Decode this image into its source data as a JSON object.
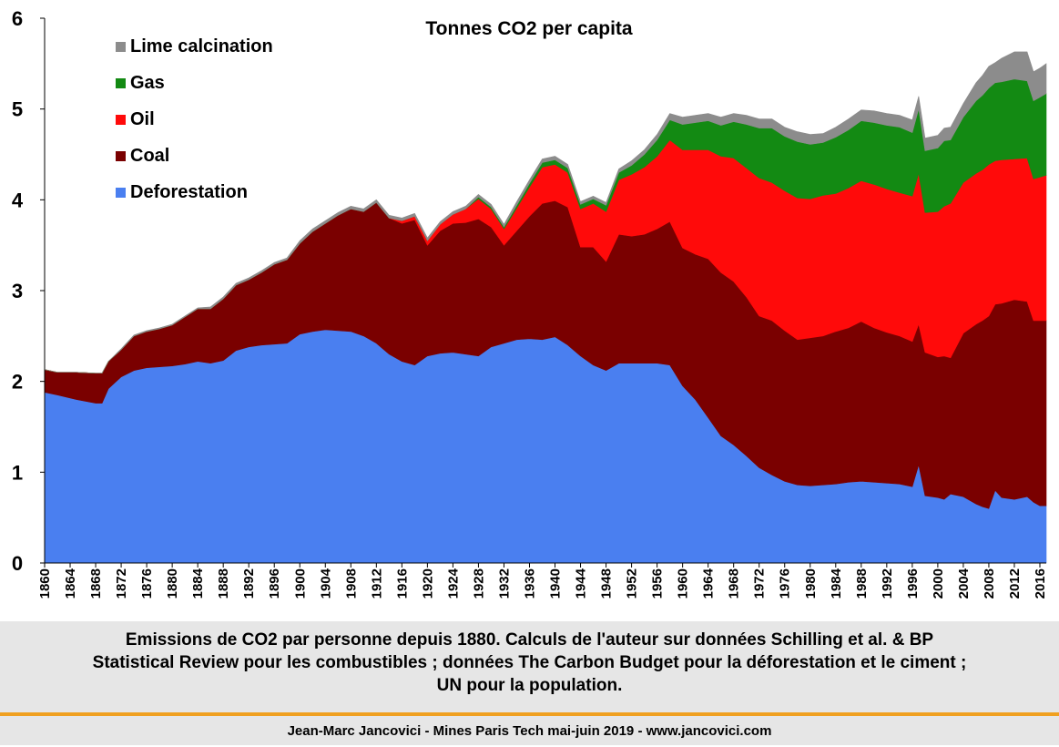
{
  "chart_data": {
    "type": "area",
    "stacked": true,
    "title": "Tonnes CO2 per capita",
    "xlabel": "",
    "ylabel": "",
    "xlim": [
      1860,
      2017
    ],
    "ylim": [
      0,
      6
    ],
    "yticks": [
      "0",
      "1",
      "2",
      "3",
      "4",
      "5",
      "6"
    ],
    "xticks": [
      "1860",
      "1864",
      "1868",
      "1872",
      "1876",
      "1880",
      "1884",
      "1888",
      "1892",
      "1896",
      "1900",
      "1904",
      "1908",
      "1912",
      "1916",
      "1920",
      "1924",
      "1928",
      "1932",
      "1936",
      "1940",
      "1944",
      "1948",
      "1952",
      "1956",
      "1960",
      "1964",
      "1968",
      "1972",
      "1976",
      "1980",
      "1984",
      "1988",
      "1992",
      "1996",
      "2000",
      "2004",
      "2008",
      "2012",
      "2016"
    ],
    "grid": false,
    "legend_position": "top-left",
    "x": [
      1860,
      1862,
      1865,
      1868,
      1869,
      1870,
      1872,
      1874,
      1876,
      1878,
      1880,
      1882,
      1884,
      1886,
      1888,
      1890,
      1892,
      1894,
      1896,
      1898,
      1900,
      1902,
      1904,
      1906,
      1908,
      1910,
      1912,
      1914,
      1916,
      1918,
      1920,
      1922,
      1924,
      1926,
      1928,
      1930,
      1932,
      1934,
      1936,
      1938,
      1940,
      1942,
      1944,
      1946,
      1948,
      1950,
      1952,
      1954,
      1956,
      1958,
      1960,
      1962,
      1964,
      1966,
      1968,
      1970,
      1972,
      1974,
      1976,
      1978,
      1980,
      1982,
      1984,
      1986,
      1988,
      1990,
      1992,
      1994,
      1996,
      1997,
      1998,
      2000,
      2001,
      2002,
      2004,
      2006,
      2007,
      2008,
      2009,
      2010,
      2012,
      2014,
      2015,
      2016,
      2017
    ],
    "series": [
      {
        "name": "Deforestation",
        "color": "#4a7ff0",
        "values": [
          1.88,
          1.85,
          1.8,
          1.76,
          1.76,
          1.92,
          2.05,
          2.12,
          2.15,
          2.16,
          2.17,
          2.19,
          2.22,
          2.2,
          2.23,
          2.34,
          2.38,
          2.4,
          2.41,
          2.42,
          2.52,
          2.55,
          2.57,
          2.56,
          2.55,
          2.5,
          2.42,
          2.3,
          2.22,
          2.18,
          2.28,
          2.31,
          2.32,
          2.3,
          2.28,
          2.38,
          2.42,
          2.46,
          2.47,
          2.46,
          2.49,
          2.4,
          2.28,
          2.18,
          2.12,
          2.2,
          2.2,
          2.2,
          2.2,
          2.18,
          1.95,
          1.8,
          1.6,
          1.4,
          1.3,
          1.18,
          1.05,
          0.97,
          0.9,
          0.86,
          0.85,
          0.86,
          0.87,
          0.89,
          0.9,
          0.89,
          0.88,
          0.87,
          0.84,
          1.08,
          0.74,
          0.72,
          0.7,
          0.76,
          0.73,
          0.65,
          0.62,
          0.6,
          0.8,
          0.72,
          0.7,
          0.73,
          0.67,
          0.63,
          0.63
        ]
      },
      {
        "name": "Coal",
        "color": "#7a0000",
        "values": [
          0.25,
          0.25,
          0.3,
          0.33,
          0.33,
          0.3,
          0.3,
          0.38,
          0.4,
          0.42,
          0.45,
          0.52,
          0.58,
          0.6,
          0.68,
          0.72,
          0.74,
          0.8,
          0.88,
          0.92,
          1.0,
          1.1,
          1.17,
          1.27,
          1.35,
          1.37,
          1.55,
          1.5,
          1.52,
          1.6,
          1.22,
          1.35,
          1.42,
          1.45,
          1.51,
          1.32,
          1.08,
          1.2,
          1.35,
          1.5,
          1.5,
          1.52,
          1.2,
          1.3,
          1.2,
          1.42,
          1.4,
          1.42,
          1.48,
          1.58,
          1.52,
          1.6,
          1.75,
          1.8,
          1.8,
          1.75,
          1.67,
          1.7,
          1.66,
          1.6,
          1.63,
          1.64,
          1.68,
          1.7,
          1.76,
          1.7,
          1.66,
          1.63,
          1.6,
          1.55,
          1.58,
          1.55,
          1.58,
          1.5,
          1.8,
          1.98,
          2.05,
          2.12,
          2.05,
          2.14,
          2.2,
          2.15,
          2.0,
          2.04,
          2.04
        ]
      },
      {
        "name": "Oil",
        "color": "#ff0a0a",
        "values": [
          0,
          0,
          0,
          0,
          0,
          0,
          0,
          0,
          0,
          0,
          0,
          0,
          0,
          0,
          0,
          0,
          0,
          0,
          0,
          0,
          0,
          0,
          0,
          0,
          0,
          0,
          0,
          0,
          0.03,
          0.04,
          0.05,
          0.07,
          0.1,
          0.15,
          0.22,
          0.2,
          0.18,
          0.25,
          0.32,
          0.4,
          0.4,
          0.38,
          0.42,
          0.48,
          0.55,
          0.6,
          0.68,
          0.74,
          0.8,
          0.9,
          1.08,
          1.15,
          1.2,
          1.28,
          1.36,
          1.42,
          1.52,
          1.52,
          1.54,
          1.56,
          1.53,
          1.55,
          1.52,
          1.54,
          1.55,
          1.58,
          1.58,
          1.58,
          1.6,
          1.66,
          1.54,
          1.6,
          1.65,
          1.7,
          1.66,
          1.66,
          1.66,
          1.67,
          1.58,
          1.58,
          1.55,
          1.58,
          1.56,
          1.58,
          1.6
        ]
      },
      {
        "name": "Gas",
        "color": "#138a13",
        "values": [
          0,
          0,
          0,
          0,
          0,
          0,
          0,
          0,
          0,
          0,
          0,
          0,
          0,
          0,
          0,
          0,
          0,
          0,
          0,
          0,
          0,
          0,
          0,
          0,
          0,
          0,
          0,
          0,
          0,
          0,
          0,
          0,
          0,
          0,
          0.02,
          0.02,
          0.02,
          0.03,
          0.04,
          0.05,
          0.05,
          0.05,
          0.05,
          0.05,
          0.07,
          0.08,
          0.1,
          0.14,
          0.18,
          0.22,
          0.28,
          0.3,
          0.32,
          0.34,
          0.4,
          0.48,
          0.55,
          0.6,
          0.6,
          0.62,
          0.6,
          0.58,
          0.62,
          0.64,
          0.66,
          0.68,
          0.7,
          0.72,
          0.7,
          0.71,
          0.68,
          0.7,
          0.72,
          0.7,
          0.72,
          0.8,
          0.82,
          0.84,
          0.86,
          0.86,
          0.88,
          0.85,
          0.86,
          0.88,
          0.9
        ]
      },
      {
        "name": "Lime calcination",
        "color": "#8c8c8c",
        "values": [
          0,
          0,
          0,
          0,
          0,
          0,
          0.01,
          0.01,
          0.01,
          0.01,
          0.01,
          0.01,
          0.01,
          0.02,
          0.02,
          0.02,
          0.02,
          0.02,
          0.02,
          0.02,
          0.03,
          0.03,
          0.03,
          0.03,
          0.03,
          0.03,
          0.03,
          0.03,
          0.03,
          0.03,
          0.03,
          0.03,
          0.03,
          0.03,
          0.03,
          0.03,
          0.03,
          0.04,
          0.04,
          0.04,
          0.04,
          0.04,
          0.03,
          0.03,
          0.03,
          0.04,
          0.05,
          0.05,
          0.06,
          0.07,
          0.08,
          0.08,
          0.08,
          0.09,
          0.09,
          0.1,
          0.1,
          0.1,
          0.1,
          0.11,
          0.11,
          0.1,
          0.11,
          0.12,
          0.12,
          0.13,
          0.13,
          0.13,
          0.14,
          0.14,
          0.14,
          0.14,
          0.14,
          0.14,
          0.15,
          0.2,
          0.22,
          0.24,
          0.22,
          0.26,
          0.3,
          0.32,
          0.32,
          0.32,
          0.33
        ]
      }
    ]
  },
  "caption": {
    "line1": "Emissions de CO2 par personne depuis 1880. Calculs de l'auteur sur données Schilling et al. & BP",
    "line2": "Statistical Review pour les combustibles ; données The Carbon Budget pour la déforestation et le ciment ;",
    "line3": "UN pour la population."
  },
  "footer": {
    "text": "Jean-Marc Jancovici - Mines Paris Tech mai-juin 2019 - www.jancovici.com"
  }
}
